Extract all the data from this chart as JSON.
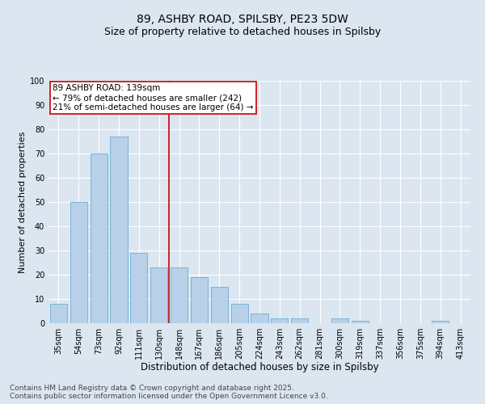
{
  "title1": "89, ASHBY ROAD, SPILSBY, PE23 5DW",
  "title2": "Size of property relative to detached houses in Spilsby",
  "xlabel": "Distribution of detached houses by size in Spilsby",
  "ylabel": "Number of detached properties",
  "categories": [
    "35sqm",
    "54sqm",
    "73sqm",
    "92sqm",
    "111sqm",
    "130sqm",
    "148sqm",
    "167sqm",
    "186sqm",
    "205sqm",
    "224sqm",
    "243sqm",
    "262sqm",
    "281sqm",
    "300sqm",
    "319sqm",
    "337sqm",
    "356sqm",
    "375sqm",
    "394sqm",
    "413sqm"
  ],
  "values": [
    8,
    50,
    70,
    77,
    29,
    23,
    23,
    19,
    15,
    8,
    4,
    2,
    2,
    0,
    2,
    1,
    0,
    0,
    0,
    1,
    0
  ],
  "bar_color": "#b8d0e8",
  "bar_edge_color": "#6baed6",
  "vline_x": 5.5,
  "vline_color": "#cc0000",
  "annotation_text": "89 ASHBY ROAD: 139sqm\n← 79% of detached houses are smaller (242)\n21% of semi-detached houses are larger (64) →",
  "annotation_box_color": "#ffffff",
  "annotation_box_edge": "#cc0000",
  "ylim": [
    0,
    100
  ],
  "yticks": [
    0,
    10,
    20,
    30,
    40,
    50,
    60,
    70,
    80,
    90,
    100
  ],
  "background_color": "#dce6f0",
  "footer": "Contains HM Land Registry data © Crown copyright and database right 2025.\nContains public sector information licensed under the Open Government Licence v3.0.",
  "title_fontsize": 10,
  "subtitle_fontsize": 9,
  "xlabel_fontsize": 8.5,
  "ylabel_fontsize": 8,
  "tick_fontsize": 7,
  "footer_fontsize": 6.5,
  "ann_fontsize": 7.5
}
